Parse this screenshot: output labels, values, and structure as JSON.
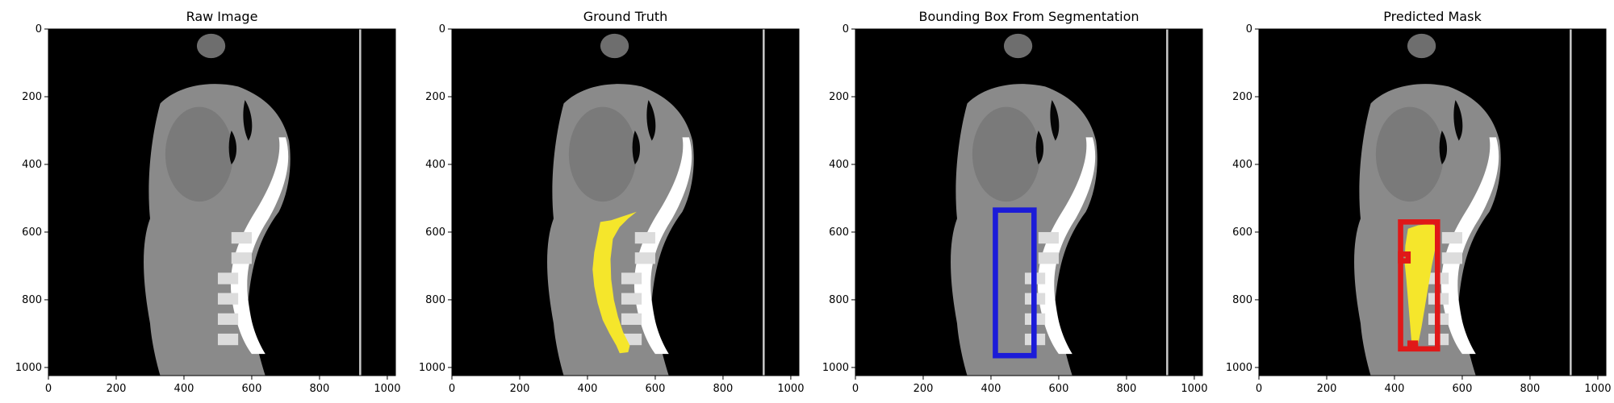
{
  "colors": {
    "mask": "#f5e62b",
    "bbox_gt": "#1c1cd8",
    "bbox_pred": "#e01818",
    "background": "#000000",
    "tissue": "#8a8a8a",
    "bone": "#ffffff"
  },
  "chart_data": [
    {
      "type": "image",
      "title": "Raw Image",
      "xlim": [
        0,
        1024
      ],
      "ylim": [
        1024,
        0
      ],
      "xticks": [
        0,
        200,
        400,
        600,
        800,
        1000
      ],
      "yticks": [
        0,
        200,
        400,
        600,
        800,
        1000
      ],
      "overlays": []
    },
    {
      "type": "image",
      "title": "Ground Truth",
      "xlim": [
        0,
        1024
      ],
      "ylim": [
        1024,
        0
      ],
      "xticks": [
        0,
        200,
        400,
        600,
        800,
        1000
      ],
      "yticks": [
        0,
        200,
        400,
        600,
        800,
        1000
      ],
      "overlays": [
        {
          "kind": "mask",
          "polygon": [
            [
              438,
              570
            ],
            [
              470,
              565
            ],
            [
              500,
              555
            ],
            [
              530,
              545
            ],
            [
              545,
              540
            ],
            [
              520,
              560
            ],
            [
              495,
              585
            ],
            [
              475,
              620
            ],
            [
              468,
              680
            ],
            [
              470,
              740
            ],
            [
              478,
              800
            ],
            [
              490,
              850
            ],
            [
              505,
              895
            ],
            [
              525,
              935
            ],
            [
              520,
              955
            ],
            [
              495,
              958
            ],
            [
              485,
              935
            ],
            [
              465,
              900
            ],
            [
              445,
              860
            ],
            [
              430,
              810
            ],
            [
              420,
              760
            ],
            [
              415,
              710
            ],
            [
              420,
              660
            ],
            [
              430,
              610
            ]
          ]
        }
      ]
    },
    {
      "type": "image",
      "title": "Bounding Box From Segmentation",
      "xlim": [
        0,
        1024
      ],
      "ylim": [
        1024,
        0
      ],
      "xticks": [
        0,
        200,
        400,
        600,
        800,
        1000
      ],
      "yticks": [
        0,
        200,
        400,
        600,
        800,
        1000
      ],
      "overlays": [
        {
          "kind": "box",
          "x0": 413,
          "y0": 535,
          "x1": 527,
          "y1": 965,
          "color": "bbox_gt"
        }
      ]
    },
    {
      "type": "image",
      "title": "Predicted Mask",
      "xlim": [
        0,
        1024
      ],
      "ylim": [
        1024,
        0
      ],
      "xticks": [
        0,
        200,
        400,
        600,
        800,
        1000
      ],
      "yticks": [
        0,
        200,
        400,
        600,
        800,
        1000
      ],
      "overlays": [
        {
          "kind": "mask",
          "polygon": [
            [
              440,
              590
            ],
            [
              470,
              580
            ],
            [
              510,
              575
            ],
            [
              525,
              585
            ],
            [
              520,
              650
            ],
            [
              510,
              700
            ],
            [
              500,
              760
            ],
            [
              490,
              820
            ],
            [
              480,
              880
            ],
            [
              470,
              930
            ],
            [
              458,
              940
            ],
            [
              450,
              920
            ],
            [
              445,
              860
            ],
            [
              440,
              800
            ],
            [
              435,
              740
            ],
            [
              430,
              690
            ],
            [
              432,
              640
            ]
          ]
        },
        {
          "kind": "box",
          "x0": 418,
          "y0": 570,
          "x1": 527,
          "y1": 945,
          "color": "bbox_pred"
        },
        {
          "kind": "box",
          "x0": 418,
          "y0": 665,
          "x1": 440,
          "y1": 685,
          "color": "bbox_pred"
        },
        {
          "kind": "box",
          "x0": 446,
          "y0": 928,
          "x1": 462,
          "y1": 944,
          "color": "bbox_pred"
        }
      ]
    }
  ]
}
